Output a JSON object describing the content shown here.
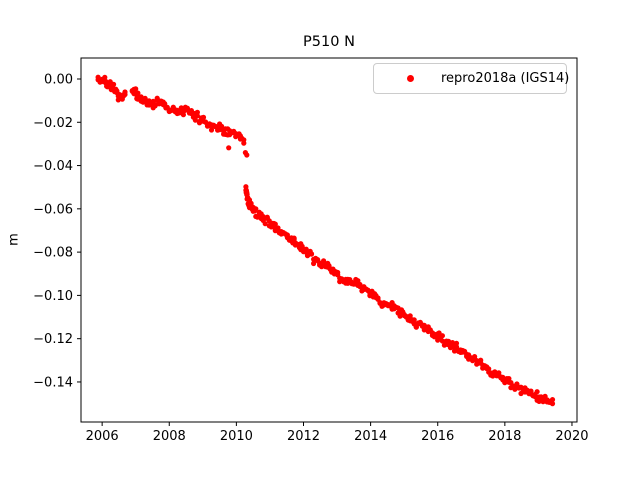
{
  "figure": {
    "background": "#ffffff"
  },
  "chart_data": {
    "type": "scatter",
    "title": "P510 N",
    "xlabel": "",
    "ylabel": "m",
    "xlim": [
      2005.37,
      2020.15
    ],
    "ylim": [
      -0.1585,
      0.0097
    ],
    "grid": false,
    "axis_color": "#000000",
    "xticks": [
      {
        "label": "2006",
        "value": 2006
      },
      {
        "label": "2008",
        "value": 2008
      },
      {
        "label": "2010",
        "value": 2010
      },
      {
        "label": "2012",
        "value": 2012
      },
      {
        "label": "2014",
        "value": 2014
      },
      {
        "label": "2016",
        "value": 2016
      },
      {
        "label": "2018",
        "value": 2018
      },
      {
        "label": "2020",
        "value": 2020
      }
    ],
    "yticks": [
      {
        "label": "0.00",
        "value": 0.0
      },
      {
        "label": "−0.02",
        "value": -0.02
      },
      {
        "label": "−0.04",
        "value": -0.04
      },
      {
        "label": "−0.06",
        "value": -0.06
      },
      {
        "label": "−0.08",
        "value": -0.08
      },
      {
        "label": "−0.10",
        "value": -0.1
      },
      {
        "label": "−0.12",
        "value": -0.12
      },
      {
        "label": "−0.14",
        "value": -0.14
      }
    ],
    "legend": {
      "label": "repro2018a (IGS14)",
      "location": "upper right",
      "marker": "dot",
      "marker_color": "#ff0000",
      "border_color": "#cccccc"
    },
    "series": [
      {
        "name": "repro2018a (IGS14)",
        "color": "#ff0000",
        "marker": "dot",
        "marker_radius_px": 2.6,
        "scatter_amp_m": 0.0025,
        "units": "m",
        "segments": [
          [
            [
              2005.88,
              -0.0005
            ],
            [
              2006.0,
              -0.001
            ],
            [
              2006.08,
              0.0
            ],
            [
              2006.16,
              -0.0025
            ],
            [
              2006.24,
              -0.002
            ],
            [
              2006.34,
              -0.004
            ],
            [
              2006.44,
              -0.0065
            ],
            [
              2006.52,
              -0.0085
            ],
            [
              2006.6,
              -0.009
            ],
            [
              2006.68,
              -0.0072
            ],
            [
              2006.73,
              -0.008
            ]
          ],
          [
            [
              2006.9,
              -0.0055
            ],
            [
              2007.0,
              -0.0068
            ],
            [
              2007.1,
              -0.009
            ],
            [
              2007.22,
              -0.0096
            ],
            [
              2007.34,
              -0.0108
            ],
            [
              2007.46,
              -0.012
            ],
            [
              2007.58,
              -0.0108
            ],
            [
              2007.7,
              -0.0098
            ],
            [
              2007.82,
              -0.0112
            ],
            [
              2007.94,
              -0.0128
            ],
            [
              2008.06,
              -0.014
            ],
            [
              2008.18,
              -0.0152
            ],
            [
              2008.3,
              -0.0155
            ],
            [
              2008.42,
              -0.0146
            ],
            [
              2008.54,
              -0.0152
            ],
            [
              2008.66,
              -0.016
            ],
            [
              2008.78,
              -0.0168
            ],
            [
              2008.9,
              -0.0182
            ],
            [
              2009.02,
              -0.0192
            ],
            [
              2009.14,
              -0.0204
            ],
            [
              2009.26,
              -0.0214
            ],
            [
              2009.38,
              -0.0218
            ],
            [
              2009.5,
              -0.0226
            ],
            [
              2009.62,
              -0.0234
            ],
            [
              2009.74,
              -0.0244
            ],
            [
              2009.86,
              -0.0252
            ],
            [
              2009.98,
              -0.0262
            ],
            [
              2010.08,
              -0.0272
            ],
            [
              2010.16,
              -0.028
            ],
            [
              2010.22,
              -0.029
            ],
            [
              2010.27,
              -0.0298
            ]
          ],
          [
            [
              2010.285,
              -0.051
            ],
            [
              2010.3,
              -0.0528
            ],
            [
              2010.32,
              -0.0543
            ],
            [
              2010.35,
              -0.0557
            ],
            [
              2010.39,
              -0.0572
            ],
            [
              2010.44,
              -0.0588
            ],
            [
              2010.5,
              -0.06
            ],
            [
              2010.58,
              -0.0615
            ],
            [
              2010.68,
              -0.063
            ],
            [
              2010.8,
              -0.0643
            ],
            [
              2010.92,
              -0.0655
            ],
            [
              2011.04,
              -0.0668
            ],
            [
              2011.16,
              -0.0684
            ],
            [
              2011.28,
              -0.0703
            ],
            [
              2011.4,
              -0.0714
            ],
            [
              2011.52,
              -0.0726
            ],
            [
              2011.64,
              -0.074
            ],
            [
              2011.76,
              -0.0758
            ],
            [
              2011.88,
              -0.0772
            ],
            [
              2012.0,
              -0.0788
            ],
            [
              2012.12,
              -0.0806
            ],
            [
              2012.24,
              -0.0828
            ],
            [
              2012.36,
              -0.084
            ],
            [
              2012.48,
              -0.0848
            ],
            [
              2012.6,
              -0.0856
            ],
            [
              2012.72,
              -0.0866
            ],
            [
              2012.84,
              -0.0884
            ],
            [
              2012.96,
              -0.09
            ],
            [
              2013.08,
              -0.0915
            ],
            [
              2013.2,
              -0.0928
            ],
            [
              2013.32,
              -0.0936
            ],
            [
              2013.44,
              -0.094
            ],
            [
              2013.56,
              -0.0948
            ],
            [
              2013.68,
              -0.096
            ],
            [
              2013.8,
              -0.0972
            ],
            [
              2013.92,
              -0.0982
            ],
            [
              2014.04,
              -0.0995
            ],
            [
              2014.16,
              -0.1012
            ],
            [
              2014.28,
              -0.1026
            ],
            [
              2014.4,
              -0.1032
            ],
            [
              2014.52,
              -0.104
            ],
            [
              2014.64,
              -0.1052
            ],
            [
              2014.76,
              -0.1064
            ],
            [
              2014.88,
              -0.1076
            ],
            [
              2015.0,
              -0.1092
            ],
            [
              2015.12,
              -0.1106
            ],
            [
              2015.24,
              -0.112
            ],
            [
              2015.36,
              -0.1126
            ],
            [
              2015.48,
              -0.1134
            ],
            [
              2015.6,
              -0.1144
            ],
            [
              2015.72,
              -0.1158
            ],
            [
              2015.84,
              -0.117
            ],
            [
              2015.96,
              -0.1184
            ],
            [
              2016.08,
              -0.12
            ],
            [
              2016.2,
              -0.1214
            ],
            [
              2016.32,
              -0.1224
            ],
            [
              2016.44,
              -0.1232
            ],
            [
              2016.56,
              -0.1244
            ],
            [
              2016.68,
              -0.1256
            ],
            [
              2016.8,
              -0.1266
            ],
            [
              2016.92,
              -0.128
            ],
            [
              2017.04,
              -0.1294
            ],
            [
              2017.16,
              -0.1308
            ],
            [
              2017.28,
              -0.132
            ],
            [
              2017.4,
              -0.1332
            ],
            [
              2017.52,
              -0.1344
            ],
            [
              2017.64,
              -0.1355
            ],
            [
              2017.76,
              -0.1366
            ],
            [
              2017.88,
              -0.138
            ],
            [
              2018.0,
              -0.1392
            ],
            [
              2018.12,
              -0.1404
            ],
            [
              2018.24,
              -0.1414
            ],
            [
              2018.36,
              -0.1424
            ],
            [
              2018.48,
              -0.1436
            ],
            [
              2018.6,
              -0.1444
            ],
            [
              2018.72,
              -0.1452
            ],
            [
              2018.84,
              -0.1462
            ],
            [
              2018.96,
              -0.1468
            ],
            [
              2019.08,
              -0.1476
            ],
            [
              2019.2,
              -0.1482
            ],
            [
              2019.32,
              -0.149
            ],
            [
              2019.42,
              -0.1494
            ],
            [
              2019.5,
              -0.1497
            ]
          ]
        ],
        "outliers": [
          [
            2009.77,
            -0.0318
          ],
          [
            2010.27,
            -0.034
          ],
          [
            2010.31,
            -0.0351
          ]
        ]
      }
    ]
  }
}
